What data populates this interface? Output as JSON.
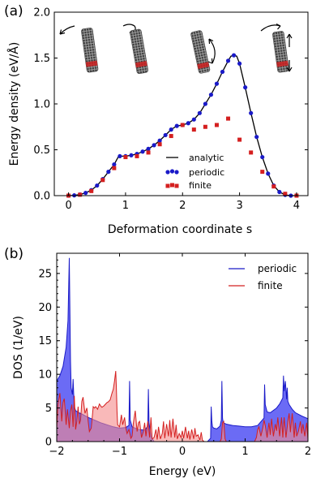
{
  "chart_data": [
    {
      "panel_label": "(a)",
      "type": "line",
      "xlabel": "Deformation coordinate s",
      "ylabel": "Energy density (eV/Å)",
      "xlim": [
        -0.25,
        4.2
      ],
      "ylim": [
        0,
        2.0
      ],
      "xticks": [
        "0",
        "1",
        "2",
        "3",
        "4"
      ],
      "yticks": [
        "0.0",
        "0.5",
        "1.0",
        "1.5",
        "2.0"
      ],
      "legend_position": "lower-right",
      "insets": [
        "bent-tube-icon",
        "twisted-tube-icon",
        "stretched-bent-tube-icon",
        "twisted-stretched-tube-icon"
      ],
      "series": [
        {
          "name": "analytic",
          "style": "line",
          "color": "#000000",
          "x": [
            0,
            0.1,
            0.2,
            0.3,
            0.4,
            0.5,
            0.6,
            0.7,
            0.8,
            0.87,
            0.9,
            1.0,
            1.1,
            1.2,
            1.3,
            1.4,
            1.5,
            1.6,
            1.7,
            1.8,
            1.9,
            1.95,
            2.0,
            2.1,
            2.2,
            2.3,
            2.4,
            2.5,
            2.6,
            2.7,
            2.8,
            2.85,
            2.9,
            2.95,
            3.0,
            3.1,
            3.2,
            3.3,
            3.4,
            3.5,
            3.6,
            3.7,
            3.8,
            3.9,
            4.0
          ],
          "y": [
            0,
            0.003,
            0.012,
            0.03,
            0.06,
            0.11,
            0.18,
            0.26,
            0.34,
            0.42,
            0.43,
            0.43,
            0.44,
            0.455,
            0.48,
            0.51,
            0.55,
            0.6,
            0.66,
            0.72,
            0.76,
            0.765,
            0.77,
            0.79,
            0.83,
            0.9,
            1.0,
            1.1,
            1.22,
            1.35,
            1.47,
            1.52,
            1.53,
            1.52,
            1.44,
            1.18,
            0.9,
            0.64,
            0.42,
            0.24,
            0.11,
            0.04,
            0.008,
            0.0,
            0.0
          ]
        },
        {
          "name": "periodic",
          "style": "dots",
          "color": "#1a1ac8",
          "x": [
            0,
            0.1,
            0.2,
            0.3,
            0.4,
            0.5,
            0.6,
            0.7,
            0.8,
            0.9,
            1.0,
            1.1,
            1.2,
            1.3,
            1.4,
            1.5,
            1.6,
            1.7,
            1.8,
            1.9,
            2.0,
            2.1,
            2.2,
            2.3,
            2.4,
            2.5,
            2.6,
            2.7,
            2.8,
            2.9,
            3.0,
            3.1,
            3.2,
            3.3,
            3.4,
            3.5,
            3.6,
            3.7,
            3.8,
            3.9
          ],
          "y": [
            0,
            0.003,
            0.012,
            0.03,
            0.06,
            0.11,
            0.18,
            0.26,
            0.34,
            0.43,
            0.43,
            0.44,
            0.455,
            0.48,
            0.51,
            0.55,
            0.6,
            0.66,
            0.72,
            0.76,
            0.77,
            0.79,
            0.83,
            0.9,
            1.0,
            1.1,
            1.22,
            1.35,
            1.47,
            1.53,
            1.44,
            1.18,
            0.9,
            0.64,
            0.42,
            0.24,
            0.11,
            0.04,
            0.008,
            0.0
          ]
        },
        {
          "name": "finite",
          "style": "squares",
          "color": "#d41f1f",
          "x": [
            0,
            0.2,
            0.4,
            0.6,
            0.8,
            1.0,
            1.2,
            1.4,
            1.6,
            1.8,
            2.0,
            2.2,
            2.4,
            2.6,
            2.8,
            3.0,
            3.2,
            3.4,
            3.6,
            3.8,
            4.0
          ],
          "y": [
            0,
            0.01,
            0.05,
            0.17,
            0.3,
            0.42,
            0.43,
            0.47,
            0.56,
            0.65,
            0.77,
            0.72,
            0.75,
            0.77,
            0.84,
            0.61,
            0.47,
            0.26,
            0.1,
            0.02,
            0.0
          ]
        }
      ]
    },
    {
      "panel_label": "(b)",
      "type": "area",
      "xlabel": "Energy (eV)",
      "ylabel": "DOS (1/eV)",
      "xlim": [
        -2,
        2
      ],
      "ylim": [
        0,
        28
      ],
      "xticks": [
        "−2",
        "−1",
        "0",
        "1",
        "2"
      ],
      "yticks": [
        "0",
        "5",
        "10",
        "15",
        "20",
        "25"
      ],
      "legend_position": "top-right",
      "series": [
        {
          "name": "periodic",
          "color": "#1a1ac8",
          "fill": "#6b6bf5",
          "x": [
            -2.0,
            -1.95,
            -1.9,
            -1.85,
            -1.82,
            -1.8,
            -1.79,
            -1.78,
            -1.77,
            -1.75,
            -1.74,
            -1.73,
            -1.72,
            -1.7,
            -1.65,
            -1.6,
            -1.5,
            -1.4,
            -1.3,
            -1.2,
            -1.1,
            -1.05,
            -1.0,
            -0.9,
            -0.85,
            -0.84,
            -0.83,
            -0.8,
            -0.7,
            -0.6,
            -0.55,
            -0.54,
            -0.53,
            -0.5,
            -0.45,
            -0.4,
            -0.3,
            -0.2,
            -0.1,
            0.0,
            0.1,
            0.2,
            0.3,
            0.4,
            0.45,
            0.46,
            0.47,
            0.48,
            0.5,
            0.55,
            0.6,
            0.62,
            0.63,
            0.64,
            0.65,
            0.7,
            0.8,
            0.9,
            1.0,
            1.1,
            1.2,
            1.3,
            1.31,
            1.32,
            1.35,
            1.4,
            1.5,
            1.55,
            1.6,
            1.61,
            1.62,
            1.64,
            1.66,
            1.67,
            1.68,
            1.7,
            1.75,
            1.8,
            1.9,
            2.0
          ],
          "y": [
            9.0,
            9.8,
            11.2,
            14.0,
            18.0,
            27.3,
            19.0,
            12.0,
            8.0,
            7.0,
            9.3,
            7.2,
            5.2,
            4.6,
            4.3,
            4.1,
            3.6,
            3.2,
            2.8,
            2.5,
            2.2,
            2.1,
            2.0,
            2.1,
            2.4,
            9.0,
            3.2,
            2.2,
            1.8,
            1.7,
            2.3,
            7.8,
            2.8,
            0.8,
            0,
            0,
            0,
            0,
            0,
            0,
            0,
            0,
            0,
            0,
            0.5,
            5.2,
            3.0,
            2.2,
            2.0,
            1.9,
            2.3,
            3.2,
            9.0,
            3.5,
            2.8,
            2.6,
            2.4,
            2.3,
            2.2,
            2.2,
            2.4,
            3.5,
            8.5,
            5.5,
            4.4,
            4.3,
            5.0,
            5.6,
            6.5,
            9.8,
            7.5,
            9.0,
            6.3,
            8.0,
            6.0,
            5.5,
            4.8,
            4.3,
            3.8,
            3.4
          ]
        },
        {
          "name": "finite",
          "color": "#d42020",
          "fill": "#f58a8a",
          "x": [
            -2.0,
            -1.98,
            -1.95,
            -1.92,
            -1.9,
            -1.88,
            -1.85,
            -1.83,
            -1.8,
            -1.78,
            -1.76,
            -1.74,
            -1.72,
            -1.7,
            -1.68,
            -1.66,
            -1.64,
            -1.62,
            -1.6,
            -1.58,
            -1.55,
            -1.52,
            -1.5,
            -1.48,
            -1.45,
            -1.42,
            -1.4,
            -1.38,
            -1.35,
            -1.32,
            -1.3,
            -1.28,
            -1.25,
            -1.22,
            -1.2,
            -1.18,
            -1.15,
            -1.12,
            -1.1,
            -1.08,
            -1.06,
            -1.05,
            -1.04,
            -1.03,
            -1.0,
            -0.97,
            -0.95,
            -0.92,
            -0.9,
            -0.88,
            -0.85,
            -0.82,
            -0.8,
            -0.78,
            -0.75,
            -0.72,
            -0.7,
            -0.68,
            -0.65,
            -0.62,
            -0.6,
            -0.58,
            -0.55,
            -0.52,
            -0.5,
            -0.48,
            -0.45,
            -0.42,
            -0.4,
            -0.38,
            -0.35,
            -0.32,
            -0.3,
            -0.28,
            -0.25,
            -0.22,
            -0.2,
            -0.18,
            -0.15,
            -0.12,
            -0.1,
            -0.08,
            -0.05,
            -0.02,
            0.0,
            0.02,
            0.05,
            0.08,
            0.1,
            0.12,
            0.15,
            0.18,
            0.2,
            0.22,
            0.25,
            0.28,
            0.3,
            0.32,
            0.35,
            0.4,
            0.45,
            0.5,
            0.55,
            0.58,
            0.6,
            0.62,
            0.64,
            0.66,
            0.68,
            0.7,
            0.72,
            0.75,
            0.8,
            0.85,
            0.9,
            0.95,
            1.0,
            1.05,
            1.1,
            1.15,
            1.18,
            1.2,
            1.22,
            1.25,
            1.28,
            1.3,
            1.32,
            1.35,
            1.38,
            1.4,
            1.42,
            1.45,
            1.48,
            1.5,
            1.52,
            1.55,
            1.58,
            1.6,
            1.62,
            1.65,
            1.68,
            1.7,
            1.72,
            1.75,
            1.78,
            1.8,
            1.82,
            1.85,
            1.88,
            1.9,
            1.92,
            1.95,
            1.98,
            2.0
          ],
          "y": [
            2.0,
            5.5,
            7.2,
            3.0,
            5.8,
            6.4,
            2.5,
            4.8,
            2.0,
            4.5,
            5.5,
            2.2,
            6.8,
            1.8,
            3.0,
            5.2,
            2.6,
            3.2,
            6.0,
            6.6,
            4.2,
            5.0,
            3.0,
            1.5,
            2.0,
            5.2,
            5.0,
            5.2,
            4.8,
            5.6,
            5.3,
            5.1,
            5.3,
            5.6,
            5.8,
            5.9,
            6.2,
            7.2,
            7.8,
            9.0,
            10.5,
            8.0,
            4.5,
            2.5,
            2.2,
            4.0,
            2.5,
            3.6,
            2.0,
            1.2,
            1.8,
            0.5,
            0.8,
            2.8,
            4.6,
            1.5,
            2.8,
            3.0,
            0.6,
            1.5,
            2.8,
            0.8,
            3.0,
            0.6,
            3.6,
            0.4,
            0.6,
            1.8,
            0.3,
            2.2,
            0.4,
            1.2,
            3.0,
            0.5,
            2.6,
            0.8,
            3.2,
            0.6,
            3.4,
            0.6,
            2.5,
            0.4,
            1.2,
            0.6,
            1.6,
            0.5,
            2.2,
            0.5,
            1.6,
            0.3,
            1.8,
            0.4,
            2.0,
            0.8,
            1.0,
            0.2,
            1.4,
            0.2,
            0.0,
            0.0,
            0.0,
            0.0,
            0.0,
            0.0,
            0.0,
            0.4,
            2.8,
            3.0,
            0.4,
            0.0,
            0.0,
            0.0,
            0.0,
            0.0,
            0.0,
            0.0,
            0.0,
            0.0,
            0.0,
            0.0,
            0.6,
            1.8,
            2.2,
            0.8,
            2.0,
            3.2,
            2.4,
            0.6,
            2.8,
            1.0,
            3.4,
            0.8,
            2.6,
            1.6,
            3.6,
            0.8,
            3.6,
            0.6,
            3.6,
            0.6,
            3.0,
            4.2,
            1.4,
            4.2,
            0.6,
            2.8,
            0.8,
            1.6,
            3.0,
            1.2,
            2.6,
            0.8,
            2.8,
            0.4
          ]
        }
      ]
    }
  ]
}
